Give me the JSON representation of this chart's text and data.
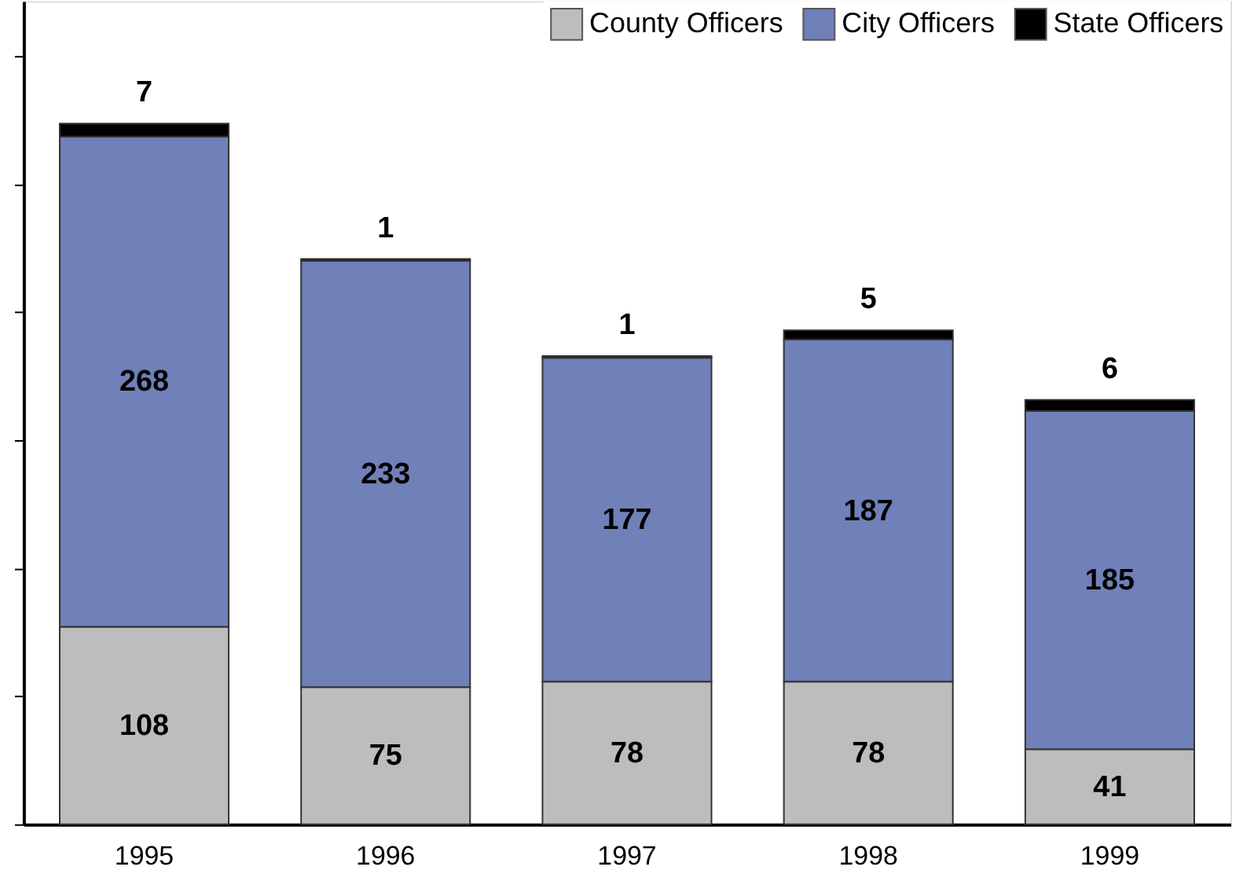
{
  "chart_data": {
    "type": "bar",
    "stacked": true,
    "categories": [
      "1995",
      "1996",
      "1997",
      "1998",
      "1999"
    ],
    "series": [
      {
        "name": "County Officers",
        "color": "#bdbdbd",
        "values": [
          108,
          75,
          78,
          78,
          41
        ]
      },
      {
        "name": "City Officers",
        "color": "#7080b8",
        "values": [
          268,
          233,
          177,
          187,
          185
        ]
      },
      {
        "name": "State Officers",
        "color": "#000000",
        "values": [
          7,
          1,
          1,
          5,
          6
        ]
      }
    ],
    "ylim": [
      0,
      450
    ],
    "yticks": [
      {
        "value": 0,
        "label": null
      },
      {
        "value": 70,
        "label": null
      },
      {
        "value": 140,
        "label": null
      },
      {
        "value": 210,
        "label": null
      },
      {
        "value": 280,
        "label": null
      },
      {
        "value": 350,
        "label": null
      },
      {
        "value": 420,
        "label": null
      }
    ],
    "data_labels": true,
    "legend": "top right",
    "grid": false,
    "tick_labels": "x"
  }
}
